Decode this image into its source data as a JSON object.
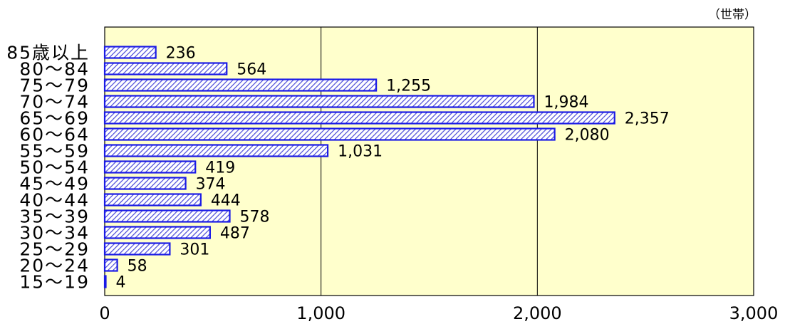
{
  "chart_data": {
    "type": "bar",
    "orientation": "horizontal",
    "unit_label": "（世帯）",
    "categories": [
      "85歳以上",
      "80～84",
      "75～79",
      "70～74",
      "65～69",
      "60～64",
      "55～59",
      "50～54",
      "45～49",
      "40～44",
      "35～39",
      "30～34",
      "25～29",
      "20～24",
      "15～19"
    ],
    "values": [
      236,
      564,
      1255,
      1984,
      2357,
      2080,
      1031,
      419,
      374,
      444,
      578,
      487,
      301,
      58,
      4
    ],
    "value_labels": [
      "236",
      "564",
      "1,255",
      "1,984",
      "2,357",
      "2,080",
      "1,031",
      "419",
      "374",
      "444",
      "578",
      "487",
      "301",
      "58",
      "4"
    ],
    "x_ticks": [
      0,
      1000,
      2000,
      3000
    ],
    "x_tick_labels": [
      "0",
      "1,000",
      "2,000",
      "3,000"
    ],
    "xlim": [
      0,
      3000
    ],
    "grid": "vertical",
    "colors": {
      "plot_background": "#ffffcc",
      "bar_border": "#1a1ae6",
      "bar_hatch": "#4a4ad8",
      "bar_fill": "#ffffff",
      "grid": "#000000"
    }
  }
}
